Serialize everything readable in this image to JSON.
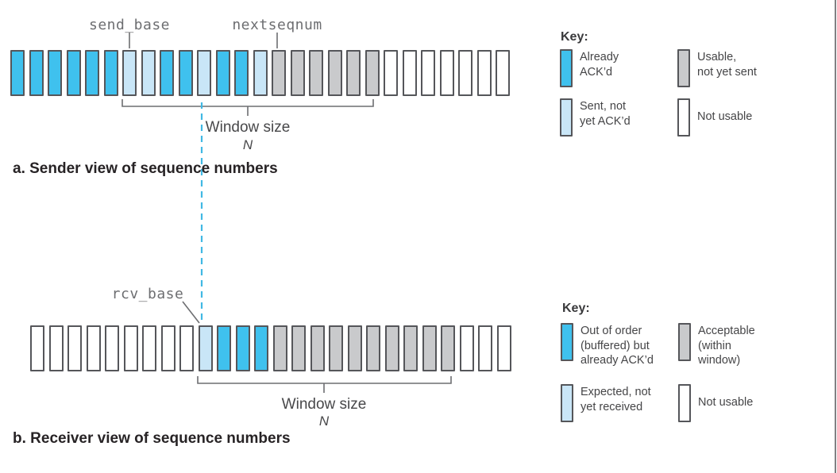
{
  "palette": {
    "box_border": "#55565a",
    "connector_line": "#6d6e71",
    "dashed_line": "#41b8e4",
    "mono_label_text": "#6d6e71",
    "key_text": "#454547",
    "caption_text": "#272325",
    "states": {
      "already_ackd": "#3fc1ee",
      "sent_not_ackd": "#c9e6f7",
      "usable": "#c9cacc",
      "not_usable": "#ffffff",
      "buffered": "#3fc1ee",
      "expected": "#c9e6f7",
      "acceptable": "#c9cacc"
    }
  },
  "sender": {
    "labels": {
      "send_base": "send_base",
      "nextseqnum": "nextseqnum"
    },
    "boxes": [
      "already_ackd",
      "already_ackd",
      "already_ackd",
      "already_ackd",
      "already_ackd",
      "already_ackd",
      "sent_not_ackd",
      "sent_not_ackd",
      "already_ackd",
      "already_ackd",
      "sent_not_ackd",
      "already_ackd",
      "already_ackd",
      "sent_not_ackd",
      "usable",
      "usable",
      "usable",
      "usable",
      "usable",
      "usable",
      "not_usable",
      "not_usable",
      "not_usable",
      "not_usable",
      "not_usable",
      "not_usable",
      "not_usable"
    ],
    "window_label": "Window size",
    "window_n": "N",
    "caption": "a. Sender view of sequence numbers",
    "key": {
      "title": "Key:",
      "items": [
        {
          "state": "already_ackd",
          "label": "Already\nACK’d"
        },
        {
          "state": "usable",
          "label": "Usable,\nnot yet sent"
        },
        {
          "state": "sent_not_ackd",
          "label": "Sent, not\nyet ACK’d"
        },
        {
          "state": "not_usable",
          "label": "Not usable"
        }
      ]
    }
  },
  "receiver": {
    "labels": {
      "rcv_base": "rcv_base"
    },
    "boxes": [
      "not_usable",
      "not_usable",
      "not_usable",
      "not_usable",
      "not_usable",
      "not_usable",
      "not_usable",
      "not_usable",
      "not_usable",
      "expected",
      "buffered",
      "buffered",
      "buffered",
      "acceptable",
      "acceptable",
      "acceptable",
      "acceptable",
      "acceptable",
      "acceptable",
      "acceptable",
      "acceptable",
      "acceptable",
      "acceptable",
      "not_usable",
      "not_usable",
      "not_usable"
    ],
    "window_label": "Window size",
    "window_n": "N",
    "caption": "b. Receiver view of sequence numbers",
    "key": {
      "title": "Key:",
      "items": [
        {
          "state": "buffered",
          "label": "Out of order\n(buffered) but\nalready ACK’d"
        },
        {
          "state": "acceptable",
          "label": "Acceptable\n(within\nwindow)"
        },
        {
          "state": "expected",
          "label": "Expected, not\nyet received"
        },
        {
          "state": "not_usable",
          "label": "Not usable"
        }
      ]
    }
  }
}
